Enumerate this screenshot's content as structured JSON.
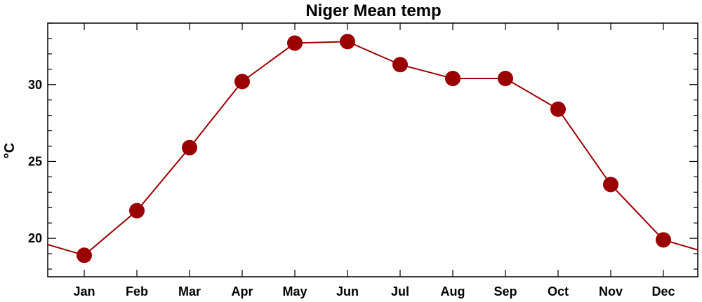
{
  "chart_data": {
    "type": "line",
    "title": "Niger Mean temp",
    "xlabel": "",
    "ylabel": "°C",
    "categories": [
      "Jan",
      "Feb",
      "Mar",
      "Apr",
      "May",
      "Jun",
      "Jul",
      "Aug",
      "Sep",
      "Oct",
      "Nov",
      "Dec"
    ],
    "series": [
      {
        "values": [
          18.9,
          21.8,
          25.9,
          30.2,
          32.7,
          32.8,
          31.3,
          30.4,
          30.4,
          28.4,
          23.5,
          19.9
        ]
      }
    ],
    "ylim": [
      17.5,
      34.0
    ],
    "yticks": [
      20,
      25,
      30
    ],
    "yticklabels": [
      "20",
      "25",
      "30"
    ],
    "y_minor_step": 1,
    "grid": false,
    "legend": "none",
    "colors": {
      "line": "#9b0000",
      "marker": "#9b0000",
      "axes": "#000000",
      "background": "#ffffff"
    }
  }
}
